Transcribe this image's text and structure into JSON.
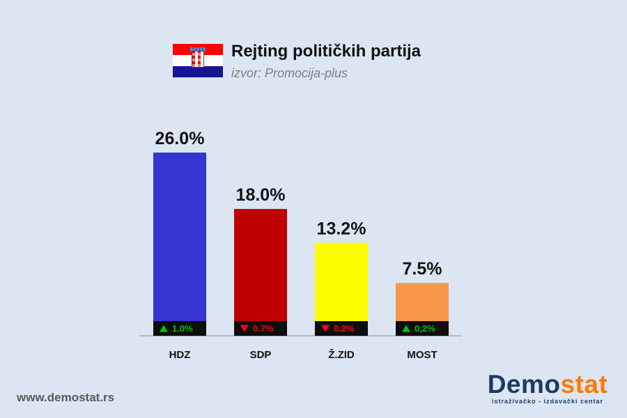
{
  "header": {
    "title": "Rejting političkih partija",
    "subtitle": "izvor: Promocija-plus"
  },
  "footer": {
    "website": "www.demostat.rs",
    "logo_part1": "Demo",
    "logo_part2": "stat",
    "logo_tagline": "istraživačko - izdavački centar"
  },
  "colors": {
    "background": "#dce6f2",
    "up_arrow": "#00c000",
    "down_arrow": "#ff0000"
  },
  "chart_data": {
    "type": "bar",
    "title": "Rejting političkih partija",
    "subtitle": "izvor: Promocija-plus",
    "categories": [
      "HDZ",
      "SDP",
      "Ž.ZID",
      "MOST"
    ],
    "values": [
      26.0,
      18.0,
      13.2,
      7.5
    ],
    "value_labels": [
      "26.0%",
      "18.0%",
      "13.2%",
      "7.5%"
    ],
    "colors": [
      "#3434d1",
      "#c00000",
      "#ffff00",
      "#f79646"
    ],
    "changes": [
      {
        "direction": "up",
        "label": "1.0%"
      },
      {
        "direction": "down",
        "label": "0.7%"
      },
      {
        "direction": "down",
        "label": "0.2%"
      },
      {
        "direction": "up",
        "label": "0,2%"
      }
    ],
    "ylim": [
      0,
      26.0
    ],
    "grid": false,
    "legend": "none"
  }
}
